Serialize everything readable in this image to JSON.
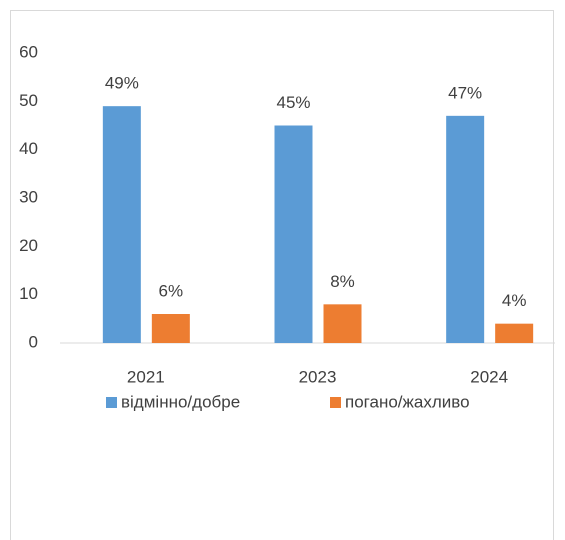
{
  "chart_data": {
    "type": "bar",
    "categories": [
      "2021",
      "2023",
      "2024"
    ],
    "series": [
      {
        "name": "відмінно/добре",
        "color": "#5b9bd5",
        "values": [
          49,
          45,
          47
        ],
        "value_labels": [
          "49%",
          "45%",
          "47%"
        ]
      },
      {
        "name": "погано/жахливо",
        "color": "#ed7d31",
        "values": [
          6,
          8,
          4
        ],
        "value_labels": [
          "6%",
          "8%",
          "4%"
        ]
      }
    ],
    "ylim": [
      0,
      60
    ],
    "yticks": [
      0,
      10,
      20,
      30,
      40,
      50,
      60
    ],
    "grid": false,
    "legend": "bottom"
  }
}
